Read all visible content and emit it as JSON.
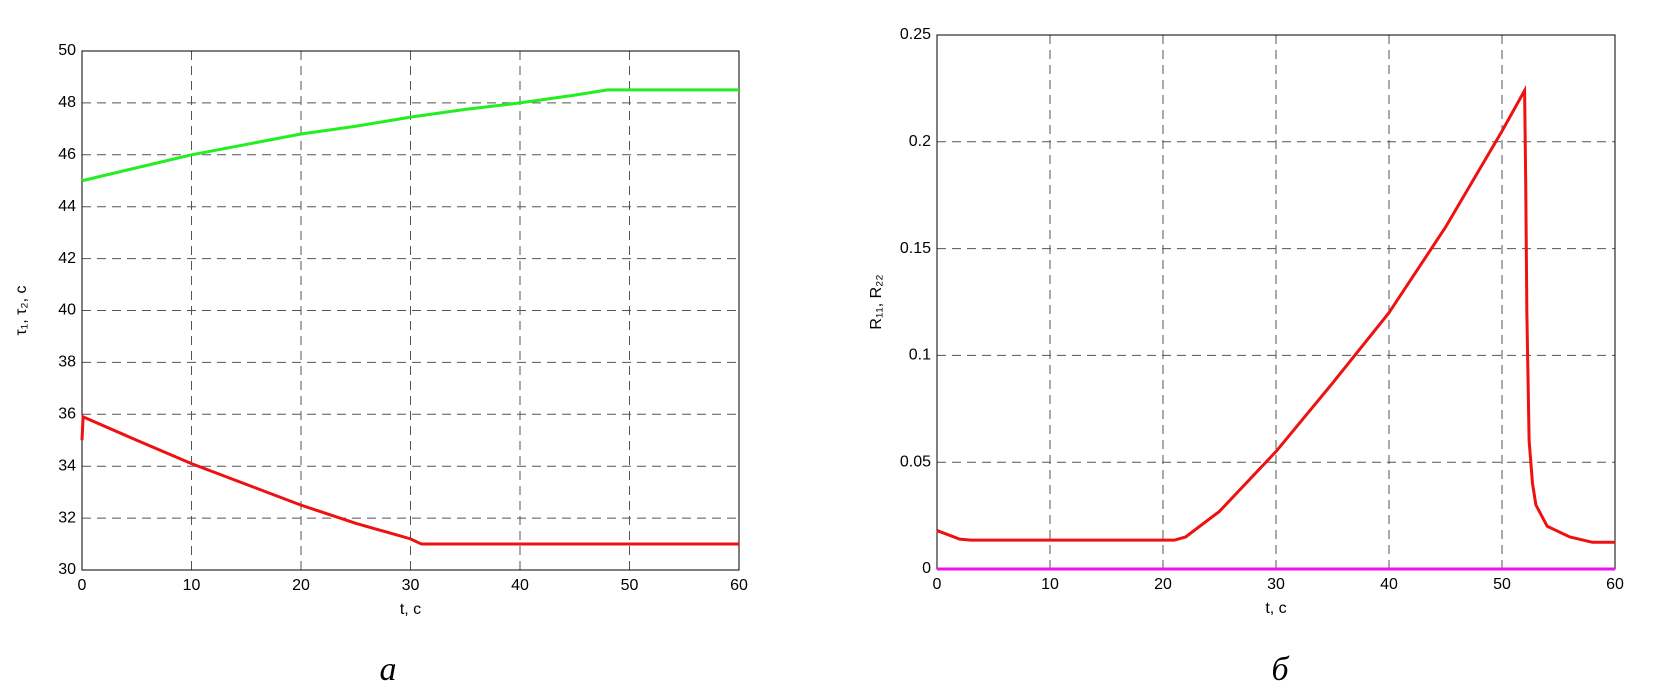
{
  "chart_data": [
    {
      "type": "line",
      "caption": "а",
      "xlabel": "t, c",
      "ylabel": "τ₁, τ₂, c",
      "xlim": [
        0,
        60
      ],
      "ylim": [
        30,
        50
      ],
      "xticks": [
        0,
        10,
        20,
        30,
        40,
        50,
        60
      ],
      "yticks": [
        30,
        32,
        34,
        36,
        38,
        40,
        42,
        44,
        46,
        48,
        50
      ],
      "grid": true,
      "series": [
        {
          "color": "#22ee22",
          "x": [
            0,
            5,
            10,
            15,
            20,
            25,
            30,
            35,
            40,
            45,
            48,
            60
          ],
          "values": [
            45,
            45.5,
            46,
            46.4,
            46.8,
            47.1,
            47.45,
            47.75,
            48.0,
            48.3,
            48.5,
            48.5
          ]
        },
        {
          "color": "#ee1111",
          "x": [
            0,
            0.1,
            5,
            10,
            15,
            20,
            25,
            30,
            31,
            60
          ],
          "values": [
            35,
            35.9,
            35.0,
            34.1,
            33.3,
            32.5,
            31.8,
            31.2,
            31.0,
            31.0
          ]
        }
      ]
    },
    {
      "type": "line",
      "caption": "б",
      "xlabel": "t, c",
      "ylabel": "R₁₁, R₂₂",
      "xlim": [
        0,
        60
      ],
      "ylim": [
        0,
        0.25
      ],
      "xticks": [
        0,
        10,
        20,
        30,
        40,
        50,
        60
      ],
      "yticks": [
        0,
        0.05,
        0.1,
        0.15,
        0.2,
        0.25
      ],
      "grid": true,
      "series": [
        {
          "color": "#ee1111",
          "x": [
            0,
            1,
            2,
            3,
            21,
            22,
            25,
            30,
            35,
            40,
            45,
            50,
            52,
            52.1,
            52.2,
            52.4,
            52.7,
            53,
            54,
            56,
            58,
            60
          ],
          "values": [
            0.018,
            0.016,
            0.014,
            0.0135,
            0.0135,
            0.015,
            0.027,
            0.055,
            0.087,
            0.12,
            0.16,
            0.205,
            0.224,
            0.18,
            0.12,
            0.06,
            0.04,
            0.03,
            0.02,
            0.015,
            0.0125,
            0.0125
          ]
        },
        {
          "color": "#ee11ee",
          "x": [
            0,
            60
          ],
          "values": [
            0,
            0
          ]
        }
      ]
    }
  ]
}
